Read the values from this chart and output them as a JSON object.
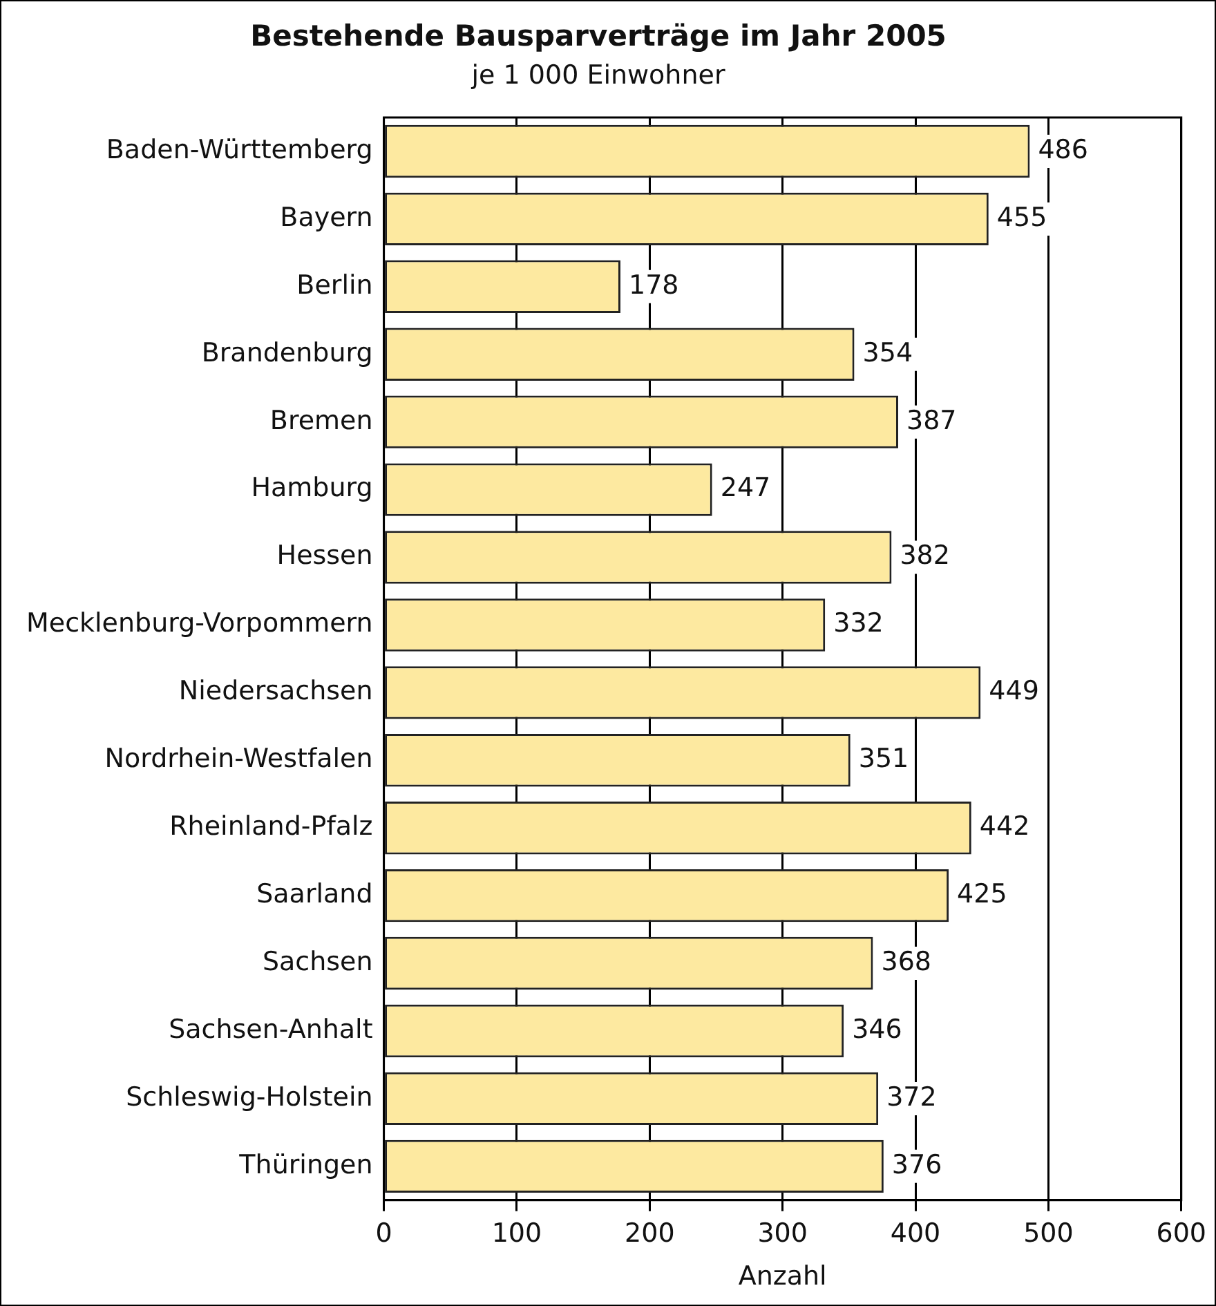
{
  "chart_data": {
    "type": "bar",
    "orientation": "horizontal",
    "title": "Bestehende Bausparverträge im Jahr 2005",
    "subtitle": "je 1 000 Einwohner",
    "xlabel": "Anzahl",
    "categories": [
      "Baden-Württemberg",
      "Bayern",
      "Berlin",
      "Brandenburg",
      "Bremen",
      "Hamburg",
      "Hessen",
      "Mecklenburg-Vorpommern",
      "Niedersachsen",
      "Nordrhein-Westfalen",
      "Rheinland-Pfalz",
      "Saarland",
      "Sachsen",
      "Sachsen-Anhalt",
      "Schleswig-Holstein",
      "Thüringen"
    ],
    "values": [
      486,
      455,
      178,
      354,
      387,
      247,
      382,
      332,
      449,
      351,
      442,
      425,
      368,
      346,
      372,
      376
    ],
    "color": "#fde9a0",
    "xlim": [
      0,
      600
    ],
    "xticks": [
      0,
      100,
      200,
      300,
      400,
      500,
      600
    ],
    "grid": "x",
    "data_labels": true
  }
}
